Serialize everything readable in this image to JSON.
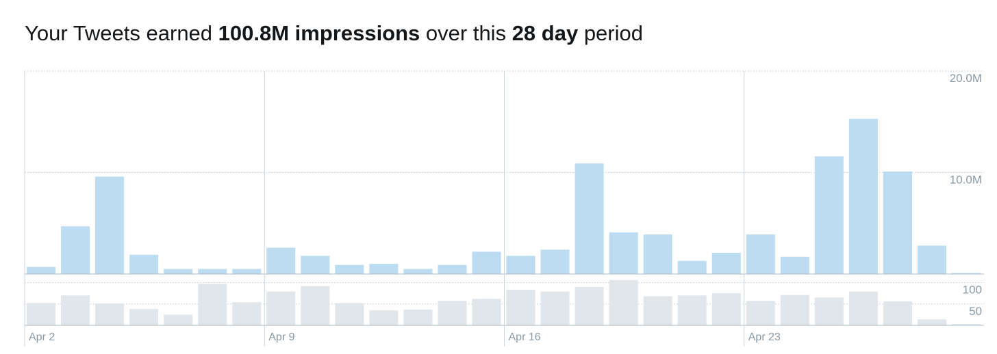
{
  "chart_data": [
    {
      "type": "bar",
      "title_parts": [
        "Your Tweets earned ",
        "100.8M impressions",
        " over this ",
        "28 day",
        " period"
      ],
      "categories": [
        "Apr 2",
        null,
        null,
        null,
        null,
        null,
        null,
        "Apr 9",
        null,
        null,
        null,
        null,
        null,
        null,
        "Apr 16",
        null,
        null,
        null,
        null,
        null,
        null,
        "Apr 23",
        null,
        null,
        null,
        null,
        null,
        null
      ],
      "values": [
        700000,
        4700000,
        9600000,
        1900000,
        500000,
        500000,
        500000,
        2600000,
        1800000,
        900000,
        1000000,
        500000,
        900000,
        2200000,
        1800000,
        2400000,
        10900000,
        4100000,
        3900000,
        1300000,
        2100000,
        3900000,
        1700000,
        11600000,
        15300000,
        10100000,
        2800000,
        100000
      ],
      "color": "#bcdcf2",
      "ylim": [
        0,
        20000000
      ],
      "yticks": [
        {
          "value": 10000000,
          "label": "10.0M"
        },
        {
          "value": 20000000,
          "label": "20.0M"
        }
      ],
      "grid": true
    },
    {
      "type": "bar",
      "values": [
        52,
        70,
        51,
        38,
        25,
        97,
        54,
        79,
        92,
        52,
        35,
        37,
        57,
        62,
        83,
        79,
        90,
        106,
        68,
        70,
        75,
        57,
        71,
        65,
        79,
        56,
        14,
        3
      ],
      "color": "#e1e6ea",
      "ylim": [
        0,
        120
      ],
      "yticks": [
        50,
        100
      ],
      "grid": true
    }
  ]
}
